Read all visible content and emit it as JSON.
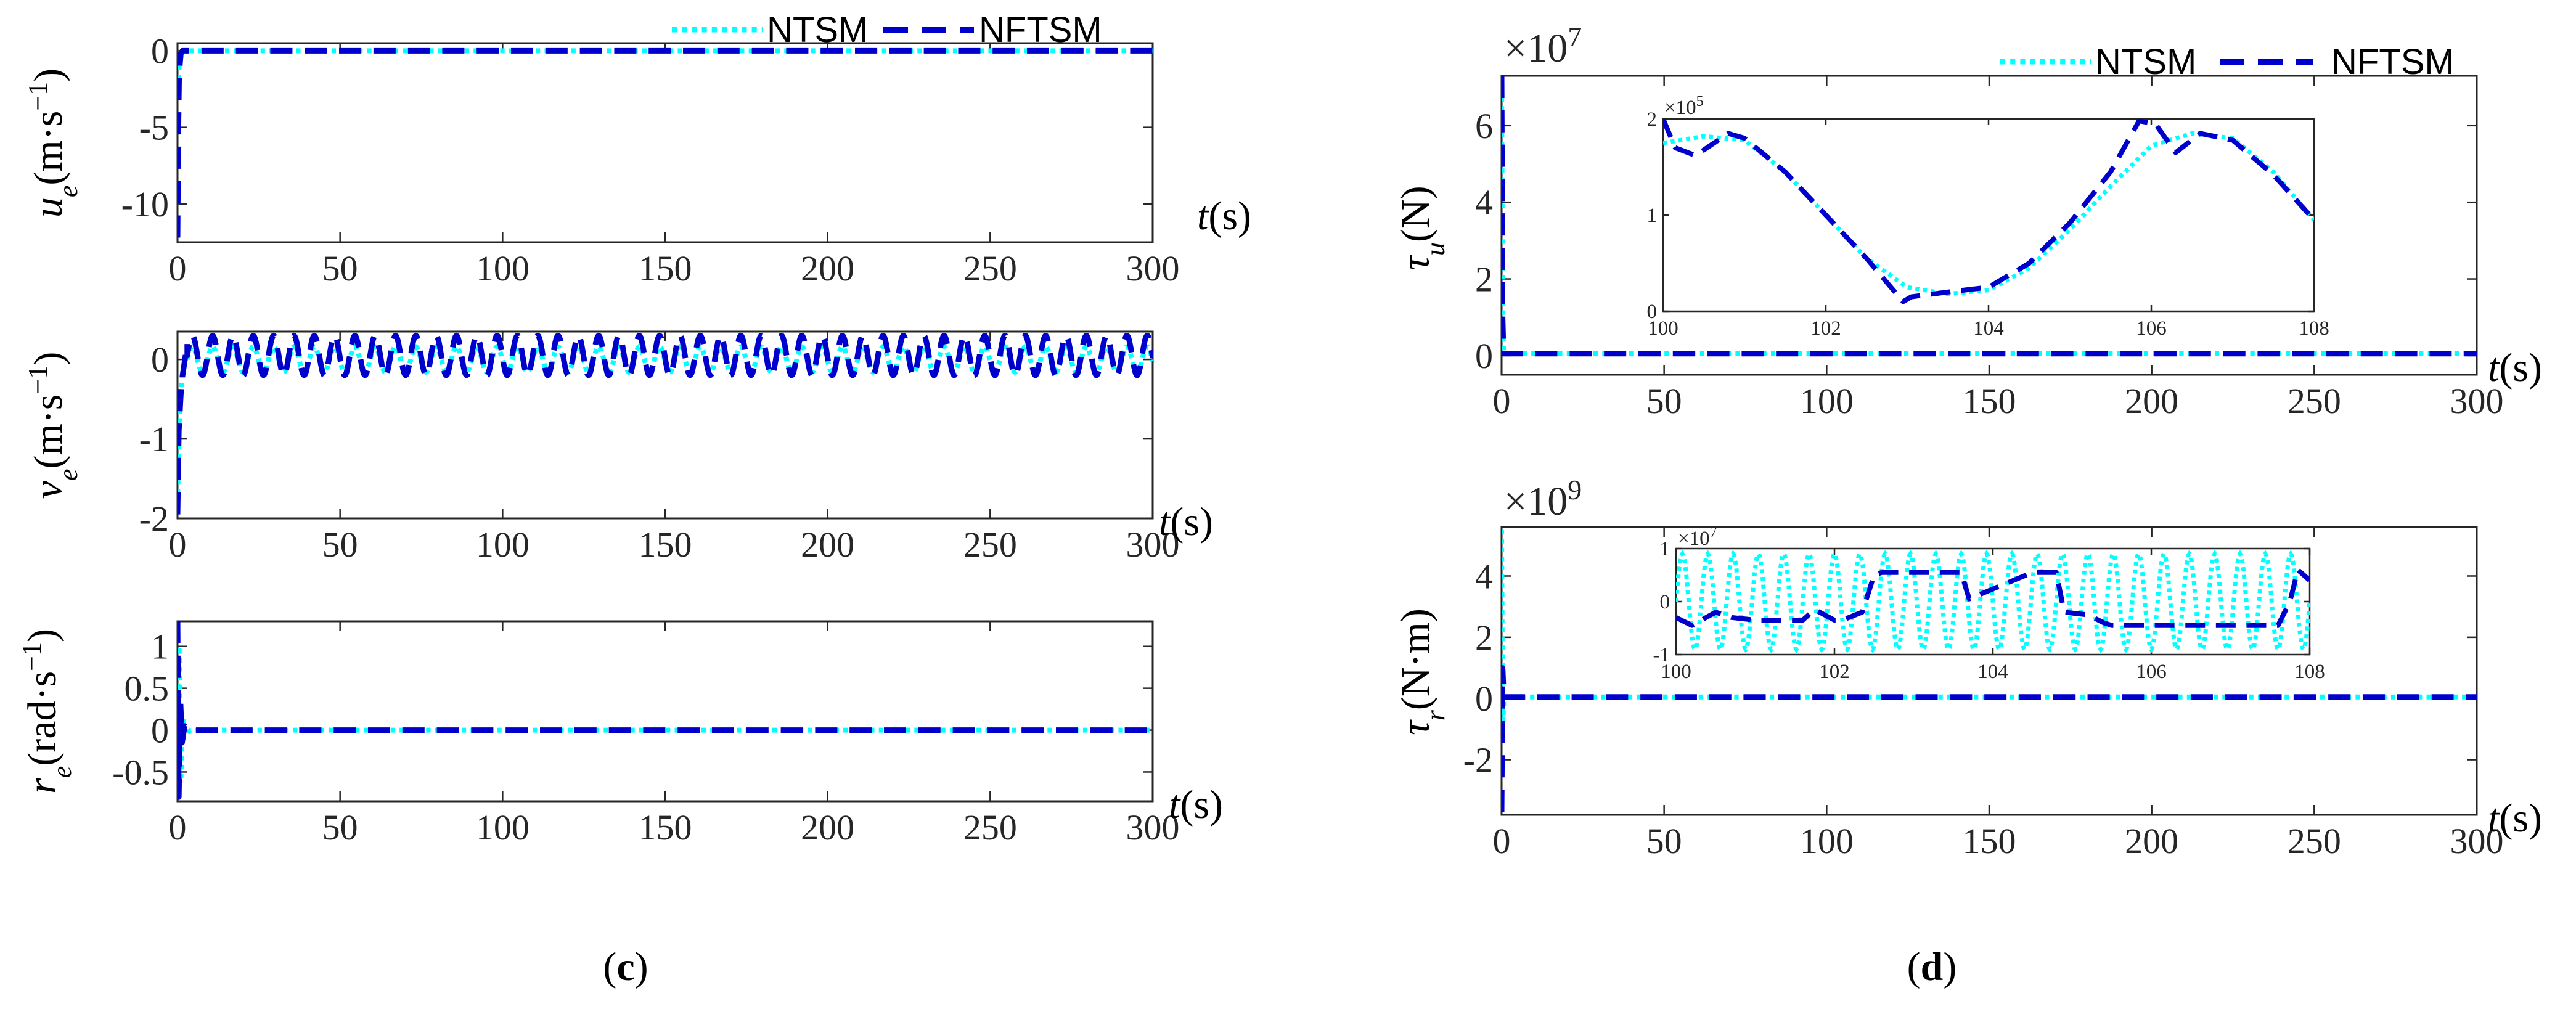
{
  "colors": {
    "ntsm": "#00FFFF",
    "nftsm": "#0000CD",
    "axis": "#262626"
  },
  "legend": {
    "ntsm": "NTSM",
    "nftsm": "NFTSM"
  },
  "panels": {
    "c": {
      "open": "(",
      "letter": "c",
      "close": ")"
    },
    "d": {
      "open": "(",
      "letter": "d",
      "close": ")"
    }
  },
  "chart_data": [
    {
      "id": "ue",
      "type": "line",
      "title": "",
      "ylabel": {
        "var": "u",
        "sub": "e",
        "unit": "(m·s",
        "exp": "−1",
        "close": ")"
      },
      "xlabel": {
        "var": "t",
        "unit": "(s)"
      },
      "xlim": [
        0,
        300
      ],
      "ylim": [
        -12.5,
        0.5
      ],
      "xticks": [
        0,
        50,
        100,
        150,
        200,
        250,
        300
      ],
      "xtick_labels": [
        "0",
        "50",
        "100",
        "150",
        "200",
        "250",
        "300"
      ],
      "yticks": [
        -10,
        -5,
        0
      ],
      "ytick_labels": [
        "-10",
        "-5",
        "0"
      ],
      "series": [
        {
          "name": "NTSM",
          "x": [
            0,
            0.3,
            0.7,
            1.2,
            2,
            300
          ],
          "y": [
            -3,
            -1.5,
            -0.5,
            -0.1,
            0,
            0
          ]
        },
        {
          "name": "NFTSM",
          "x": [
            0,
            0.2,
            0.5,
            1,
            1.5,
            300
          ],
          "y": [
            -12.2,
            -6,
            -1.5,
            -0.2,
            0,
            0
          ]
        }
      ]
    },
    {
      "id": "ve",
      "type": "line",
      "title": "",
      "ylabel": {
        "var": "v",
        "sub": "e",
        "unit": "(m·s",
        "exp": "−1",
        "close": ")"
      },
      "xlabel": {
        "var": "t",
        "unit": "(s)"
      },
      "xlim": [
        0,
        300
      ],
      "ylim": [
        -2,
        0.35
      ],
      "xticks": [
        0,
        50,
        100,
        150,
        200,
        250,
        300
      ],
      "xtick_labels": [
        "0",
        "50",
        "100",
        "150",
        "200",
        "250",
        "300"
      ],
      "yticks": [
        -2,
        -1,
        0
      ],
      "ytick_labels": [
        "-2",
        "-1",
        "0"
      ],
      "series": [
        {
          "name": "NTSM",
          "period": 6.25,
          "amplitude": 0.16,
          "offset": 0.0,
          "transient": {
            "x": [
              0,
              0.5,
              1.5,
              3
            ],
            "y": [
              -1.8,
              -0.8,
              -0.2,
              0.1
            ]
          }
        },
        {
          "name": "NFTSM",
          "period": 6.25,
          "amplitude": 0.25,
          "offset": 0.05,
          "transient": {
            "x": [
              0,
              0.4,
              1.2,
              3
            ],
            "y": [
              -1.95,
              -0.9,
              -0.3,
              0.2
            ]
          }
        }
      ]
    },
    {
      "id": "re",
      "type": "line",
      "title": "",
      "ylabel": {
        "var": "r",
        "sub": "e",
        "unit": "(rad·s",
        "exp": "−1",
        "close": ")"
      },
      "xlabel": {
        "var": "t",
        "unit": "(s)"
      },
      "xlim": [
        0,
        300
      ],
      "ylim": [
        -0.85,
        1.3
      ],
      "xticks": [
        0,
        50,
        100,
        150,
        200,
        250,
        300
      ],
      "xtick_labels": [
        "0",
        "50",
        "100",
        "150",
        "200",
        "250",
        "300"
      ],
      "yticks": [
        -0.5,
        0,
        0.5,
        1
      ],
      "ytick_labels": [
        "-0.5",
        "0",
        "0.5",
        "1"
      ],
      "series": [
        {
          "name": "NTSM",
          "x": [
            0,
            0.5,
            1.0,
            1.6,
            2.5,
            4,
            300
          ],
          "y": [
            0.4,
            1.0,
            -0.6,
            0.15,
            -0.05,
            0,
            0
          ]
        },
        {
          "name": "NFTSM",
          "x": [
            0,
            0.4,
            0.9,
            1.4,
            2.2,
            3.5,
            300
          ],
          "y": [
            1.3,
            -0.8,
            0.35,
            -0.15,
            0.05,
            0,
            0
          ]
        }
      ]
    },
    {
      "id": "tau_u",
      "type": "line",
      "title": "",
      "ylabel": {
        "var": "τ",
        "sub": "u",
        "unit": "(N)"
      },
      "xlabel": {
        "var": "t",
        "unit": "(s)"
      },
      "multiplier": {
        "base": "×10",
        "exp": "7"
      },
      "xlim": [
        0,
        300
      ],
      "ylim": [
        -0.5,
        7.3
      ],
      "xticks": [
        0,
        50,
        100,
        150,
        200,
        250,
        300
      ],
      "xtick_labels": [
        "0",
        "50",
        "100",
        "150",
        "200",
        "250",
        "300"
      ],
      "yticks": [
        0,
        2,
        4,
        6
      ],
      "ytick_labels": [
        "0",
        "2",
        "4",
        "6"
      ],
      "series": [
        {
          "name": "NTSM",
          "x": [
            0,
            0.3,
            0.6,
            300
          ],
          "y": [
            7.2,
            1,
            0.05,
            0.05
          ]
        },
        {
          "name": "NFTSM",
          "x": [
            0,
            0.3,
            0.6,
            300
          ],
          "y": [
            7.3,
            1,
            0.05,
            0.05
          ]
        }
      ],
      "inset": {
        "xlim": [
          100,
          108
        ],
        "ylim": [
          0,
          2
        ],
        "xticks": [
          100,
          102,
          104,
          106,
          108
        ],
        "xtick_labels": [
          "100",
          "102",
          "104",
          "106",
          "108"
        ],
        "yticks": [
          0,
          1,
          2
        ],
        "ytick_labels": [
          "0",
          "1",
          "2"
        ],
        "multiplier": {
          "base": "×10",
          "exp": "5"
        },
        "series": [
          {
            "name": "NTSM",
            "x": [
              100,
              100.5,
              101,
              101.5,
              102,
              102.5,
              103,
              103.5,
              104,
              104.5,
              105,
              105.5,
              106,
              106.5,
              107,
              107.5,
              108
            ],
            "y": [
              1.75,
              1.82,
              1.78,
              1.45,
              1.0,
              0.55,
              0.25,
              0.18,
              0.22,
              0.45,
              0.85,
              1.3,
              1.72,
              1.85,
              1.8,
              1.45,
              0.95
            ]
          },
          {
            "name": "NFTSM",
            "x": [
              100,
              100.15,
              100.4,
              100.8,
              101,
              101.5,
              102,
              102.5,
              102.95,
              103.05,
              103.5,
              104,
              104.5,
              105,
              105.5,
              105.85,
              106.05,
              106.3,
              106.6,
              107,
              107.5,
              108
            ],
            "y": [
              2.0,
              1.7,
              1.62,
              1.85,
              1.8,
              1.45,
              1.0,
              0.55,
              0.1,
              0.15,
              0.2,
              0.25,
              0.5,
              0.92,
              1.45,
              1.98,
              1.95,
              1.65,
              1.85,
              1.78,
              1.42,
              0.95
            ]
          }
        ]
      }
    },
    {
      "id": "tau_r",
      "type": "line",
      "title": "",
      "ylabel": {
        "var": "τ",
        "sub": "r",
        "unit": "(N·m)"
      },
      "xlabel": {
        "var": "t",
        "unit": "(s)"
      },
      "multiplier": {
        "base": "×10",
        "exp": "9"
      },
      "xlim": [
        0,
        300
      ],
      "ylim": [
        -3.8,
        5.6
      ],
      "xticks": [
        0,
        50,
        100,
        150,
        200,
        250,
        300
      ],
      "xtick_labels": [
        "0",
        "50",
        "100",
        "150",
        "200",
        "250",
        "300"
      ],
      "yticks": [
        -2,
        0,
        2,
        4
      ],
      "ytick_labels": [
        "-2",
        "0",
        "2",
        "4"
      ],
      "series": [
        {
          "name": "NTSM",
          "x": [
            0,
            0.3,
            0.7,
            300
          ],
          "y": [
            5.5,
            -1,
            0.05,
            0.05
          ]
        },
        {
          "name": "NFTSM",
          "x": [
            0,
            0.3,
            0.7,
            300
          ],
          "y": [
            -3.7,
            1,
            0.05,
            0.05
          ]
        }
      ],
      "inset": {
        "xlim": [
          100,
          108
        ],
        "ylim": [
          -1,
          1
        ],
        "xticks": [
          100,
          102,
          104,
          106,
          108
        ],
        "xtick_labels": [
          "100",
          "102",
          "104",
          "106",
          "108"
        ],
        "yticks": [
          -1,
          0,
          1
        ],
        "ytick_labels": [
          "-1",
          "0",
          "1"
        ],
        "multiplier": {
          "base": "×10",
          "exp": "7"
        },
        "series": [
          {
            "name": "NTSM",
            "period": 0.32,
            "amplitude": 0.9
          },
          {
            "name": "NFTSM",
            "x": [
              100,
              100.2,
              100.5,
              100.7,
              101.0,
              101.6,
              101.75,
              102.0,
              102.1,
              102.35,
              102.5,
              102.6,
              103.6,
              103.7,
              104.5,
              104.8,
              104.9,
              105.2,
              105.4,
              105.5,
              106.5,
              107.6,
              107.75,
              107.85,
              108
            ],
            "y": [
              -0.3,
              -0.45,
              -0.2,
              -0.3,
              -0.35,
              -0.35,
              -0.15,
              -0.35,
              -0.35,
              -0.2,
              0.5,
              0.55,
              0.55,
              0.05,
              0.55,
              0.55,
              -0.2,
              -0.25,
              -0.4,
              -0.45,
              -0.45,
              -0.45,
              0.0,
              0.6,
              0.4
            ]
          }
        ]
      }
    }
  ]
}
